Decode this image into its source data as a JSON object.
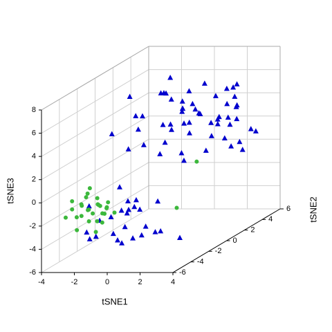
{
  "chart_data": {
    "type": "scatter3d",
    "xlabel": "tSNE1",
    "ylabel": "tSNE2",
    "zlabel": "tSNE3",
    "xlim": [
      -4,
      4
    ],
    "ylim": [
      -6,
      6
    ],
    "zlim": [
      -6,
      8
    ],
    "xticks": [
      -4,
      -2,
      0,
      2,
      4
    ],
    "yticks": [
      -6,
      -4,
      -2,
      0,
      2,
      4,
      6
    ],
    "zticks": [
      -6,
      -4,
      -2,
      0,
      2,
      4,
      6,
      8
    ],
    "grid": true,
    "series": [
      {
        "color": "#0000cd",
        "marker": "triangle",
        "x": [
          -1.5,
          -0.8,
          0.2,
          1.1,
          -2.2,
          0.5,
          -1.0,
          1.8,
          -0.3,
          0.9,
          -1.7,
          0.1,
          1.4,
          -0.6,
          2.0,
          -1.2,
          0.7,
          -0.2,
          1.5,
          -2.5,
          0.3,
          1.0,
          -0.9,
          2.3,
          0.0,
          -1.8,
          -0.5,
          0.6,
          1.7,
          2.8,
          3.5,
          -1.1,
          0.2,
          1.3,
          2.5,
          3.2,
          -2.0,
          -0.7,
          0.9,
          2.1,
          3.8,
          -1.4,
          0.4,
          1.6,
          2.9,
          -0.3,
          1.1,
          2.4,
          3.4,
          -1.6,
          0.0,
          1.9,
          3.0,
          -0.9,
          0.8,
          2.2,
          3.6,
          -2.3,
          -0.1,
          1.4,
          2.7,
          0.5,
          1.8,
          3.1,
          -1.2,
          0.3,
          2.0,
          3.3,
          -0.4,
          1.2,
          2.6,
          -1.9,
          0.7,
          1.5,
          2.3,
          3.9,
          -0.6,
          1.0,
          2.8,
          0.1
        ],
        "y": [
          -5.2,
          -4.1,
          -3.5,
          -5.8,
          -2.8,
          -4.6,
          -3.0,
          -5.0,
          -2.2,
          -3.8,
          -4.9,
          -5.5,
          -2.6,
          -3.3,
          -4.3,
          -2.4,
          -5.3,
          -4.0,
          -3.1,
          -3.7,
          -2.9,
          -4.8,
          -5.6,
          -2.1,
          -3.6,
          0.5,
          2.1,
          -1.2,
          3.4,
          1.0,
          4.2,
          -0.5,
          2.8,
          0.2,
          3.9,
          1.5,
          -1.8,
          4.5,
          0.8,
          2.5,
          3.1,
          -0.9,
          1.7,
          4.8,
          2.2,
          -1.5,
          3.6,
          0.0,
          2.9,
          4.0,
          1.2,
          -0.3,
          3.3,
          2.0,
          -1.0,
          4.4,
          1.9,
          0.6,
          2.6,
          3.8,
          -0.7,
          1.4,
          4.1,
          2.4,
          0.3,
          3.0,
          -1.3,
          1.8,
          4.6,
          2.7,
          0.9,
          3.5,
          -0.2,
          2.3,
          4.3,
          1.1,
          3.7,
          -1.6,
          2.0,
          0.4
        ],
        "z": [
          -3.5,
          -2.1,
          -4.2,
          -1.0,
          -3.0,
          -0.5,
          -4.6,
          -2.5,
          -1.5,
          -3.8,
          -0.8,
          -2.9,
          -4.0,
          -1.9,
          -3.3,
          -0.3,
          -2.4,
          -4.4,
          -1.2,
          -3.6,
          -2.0,
          -0.9,
          -3.1,
          -4.8,
          -1.7,
          4.5,
          5.2,
          2.0,
          3.1,
          6.0,
          1.5,
          3.8,
          5.6,
          0.8,
          2.7,
          6.4,
          4.0,
          1.2,
          5.0,
          3.3,
          2.2,
          6.8,
          4.6,
          1.8,
          3.6,
          5.4,
          2.5,
          4.9,
          0.5,
          6.2,
          3.0,
          4.3,
          1.0,
          5.8,
          2.9,
          3.5,
          6.6,
          1.6,
          4.8,
          2.3,
          5.3,
          0.9,
          3.9,
          6.1,
          2.1,
          4.4,
          5.7,
          1.3,
          3.2,
          6.3,
          2.6,
          5.1,
          4.1,
          0.7,
          3.7,
          5.9,
          2.4,
          4.7,
          1.9,
          6.5
        ]
      },
      {
        "color": "#3cb83c",
        "marker": "circle",
        "x": [
          -2.8,
          -2.2,
          -1.6,
          -1.0,
          -2.5,
          -1.9,
          -1.3,
          -0.7,
          -2.9,
          -2.0,
          -1.5,
          -0.9,
          -2.4,
          -1.8,
          -1.1,
          -2.6,
          -2.1,
          -1.4,
          -0.6,
          -2.3,
          -1.7,
          -1.2,
          -2.7,
          -1.9,
          -1.0,
          -2.2,
          -1.5,
          3.0,
          2.6,
          -0.8
        ],
        "y": [
          -5.5,
          -4.8,
          -5.1,
          -4.2,
          -3.6,
          -5.9,
          -4.4,
          -3.9,
          -4.6,
          -3.3,
          -5.3,
          -4.9,
          -5.0,
          -3.8,
          -5.6,
          -4.1,
          -4.5,
          -3.5,
          -5.2,
          -5.7,
          -4.0,
          -3.7,
          -3.2,
          -5.4,
          -4.7,
          -3.9,
          -4.3,
          -1.5,
          -3.0,
          -5.8
        ],
        "z": [
          -1.5,
          -0.8,
          -2.0,
          -1.2,
          -0.3,
          -2.4,
          -1.0,
          -1.8,
          -0.5,
          -1.4,
          -0.9,
          -2.2,
          -1.7,
          -0.6,
          -1.1,
          -2.0,
          -0.2,
          -1.6,
          -1.3,
          -0.7,
          -2.5,
          -1.0,
          -1.9,
          -0.4,
          -1.5,
          0.3,
          -0.9,
          1.5,
          -1.8,
          -2.6
        ]
      }
    ]
  }
}
